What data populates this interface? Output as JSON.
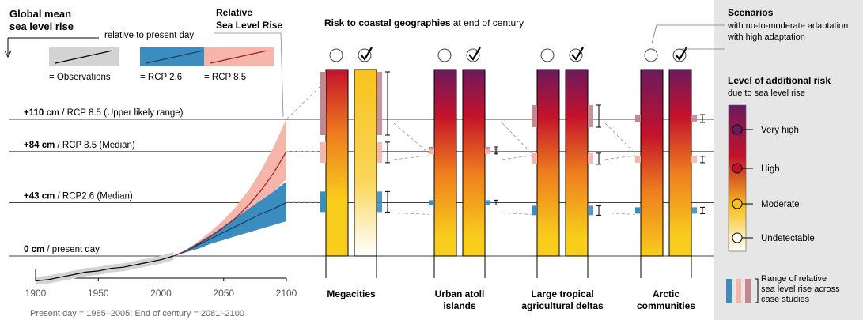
{
  "header": {
    "gmsl_title_line1": "Global mean",
    "gmsl_title_line2": "sea level rise",
    "gmsl_subtitle": "relative to present day",
    "rslr_title_line1": "Relative",
    "rslr_title_line2": "Sea Level Rise",
    "risk_title_bold": "Risk to coastal geographies",
    "risk_title_rest": " at end of century"
  },
  "legend_series": [
    {
      "label": "= Observations",
      "color": "#000000",
      "band": "#d3d3d3"
    },
    {
      "label": "= RCP 2.6",
      "color": "#1f3b5a",
      "band": "#3a8dbe"
    },
    {
      "label": "= RCP 8.5",
      "color": "#9b1c2c",
      "band": "#f5b5a8"
    }
  ],
  "levels": [
    {
      "value_bold": "+110 cm",
      "rest": " / RCP 8.5 (Upper likely range)",
      "cm": 110
    },
    {
      "value_bold": "+84  cm",
      "rest": " / RCP 8.5 (Median)",
      "cm": 84
    },
    {
      "value_bold": "+43 cm",
      "rest": " / RCP2.6 (Median)",
      "cm": 43
    },
    {
      "value_bold": "0 cm",
      "rest": " / present day",
      "cm": 0
    }
  ],
  "chart_data": {
    "type": "line",
    "xlabel": "",
    "ylabel": "",
    "xlim": [
      1900,
      2100
    ],
    "ylim": [
      -40,
      145
    ],
    "xticks": [
      1900,
      1950,
      2000,
      2050,
      2100
    ],
    "xtick_labels": [
      "1900",
      "1950",
      "2000",
      "2050",
      "2100"
    ],
    "series": [
      {
        "name": "Observations",
        "x": [
          1900,
          1910,
          1920,
          1930,
          1940,
          1950,
          1960,
          1970,
          1980,
          1990,
          2000,
          2010
        ],
        "y": [
          -20,
          -19,
          -17,
          -15,
          -13,
          -12,
          -10,
          -9,
          -7,
          -5,
          -3,
          0
        ]
      },
      {
        "name": "RCP 2.6",
        "x": [
          2010,
          2020,
          2030,
          2040,
          2050,
          2060,
          2070,
          2080,
          2090,
          2100
        ],
        "y": [
          0,
          4,
          9,
          14,
          19,
          24,
          29,
          34,
          38,
          43
        ],
        "lower": [
          0,
          3,
          6,
          10,
          13,
          16,
          19,
          22,
          25,
          28
        ],
        "upper": [
          0,
          5,
          11,
          17,
          24,
          31,
          38,
          45,
          52,
          60
        ]
      },
      {
        "name": "RCP 8.5",
        "x": [
          2010,
          2020,
          2030,
          2040,
          2050,
          2060,
          2070,
          2080,
          2090,
          2100
        ],
        "y": [
          0,
          4,
          10,
          16,
          23,
          31,
          41,
          53,
          67,
          84
        ],
        "lower": [
          0,
          3,
          8,
          13,
          19,
          25,
          33,
          42,
          52,
          62
        ],
        "upper": [
          0,
          5,
          12,
          20,
          29,
          40,
          53,
          69,
          88,
          110
        ]
      }
    ]
  },
  "footnote": "Present day = 1985–2005; End of century = 2081–2100",
  "geographies": [
    {
      "label_line1": "Megacities",
      "label_line2": ""
    },
    {
      "label_line1": "Urban atoll",
      "label_line2": "islands"
    },
    {
      "label_line1": "Large tropical",
      "label_line2": "agricultural deltas"
    },
    {
      "label_line1": "Arctic",
      "label_line2": "communities"
    }
  ],
  "scenarios": {
    "title": "Scenarios",
    "no_to_moderate": "with no-to-moderate adaptation",
    "high": "with high adaptation"
  },
  "risk_legend": {
    "title": "Level of additional risk",
    "subtitle": "due to sea level rise",
    "levels": [
      {
        "label": "Very high",
        "color": "#6b1a5e"
      },
      {
        "label": "High",
        "color": "#c4122b"
      },
      {
        "label": "Moderate",
        "color": "#f6c21b"
      },
      {
        "label": "Undetectable",
        "color": "#ffffff"
      }
    ]
  },
  "range_legend": {
    "line1": "Range of  relative",
    "line2": "sea level rise across",
    "line3": "case studies",
    "colors": [
      "#3a8dbe",
      "#f5b5a8",
      "#c48790"
    ]
  }
}
